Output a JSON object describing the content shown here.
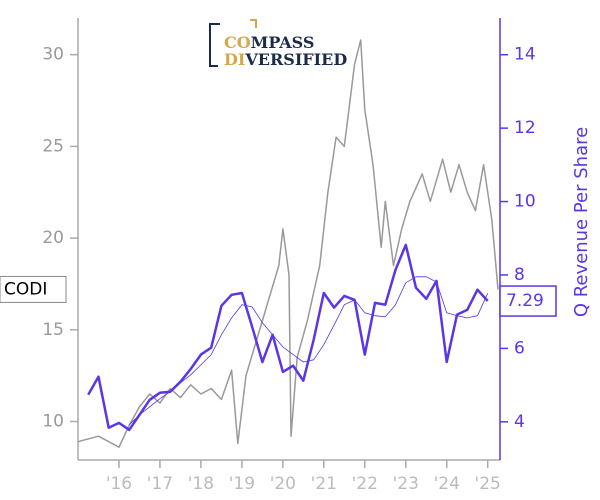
{
  "chart_data": {
    "type": "line",
    "logo": {
      "line1_accent": "CO",
      "line1": "MPASS",
      "line2_accent": "DI",
      "line2": "VERSIFIED"
    },
    "y2label": "Q Revenue Per Share",
    "xlim": [
      2015,
      2025.3
    ],
    "xticks": [
      {
        "value": 2016,
        "label": "'16"
      },
      {
        "value": 2017,
        "label": "'17"
      },
      {
        "value": 2018,
        "label": "'18"
      },
      {
        "value": 2019,
        "label": "'19"
      },
      {
        "value": 2020,
        "label": "'20"
      },
      {
        "value": 2021,
        "label": "'21"
      },
      {
        "value": 2022,
        "label": "'22"
      },
      {
        "value": 2023,
        "label": "'23"
      },
      {
        "value": 2024,
        "label": "'24"
      },
      {
        "value": 2025,
        "label": "'25"
      }
    ],
    "ylim": [
      7.9,
      32
    ],
    "yticks": [
      10,
      15,
      20,
      25,
      30
    ],
    "y2lim": [
      2.96,
      15
    ],
    "y2ticks": [
      4,
      6,
      8,
      10,
      12,
      14
    ],
    "series": [
      {
        "name": "CODI",
        "color": "#999999",
        "width": 1.5,
        "x": [
          2015.0,
          2015.5,
          2016.0,
          2016.25,
          2016.5,
          2016.75,
          2017.0,
          2017.25,
          2017.5,
          2017.75,
          2018.0,
          2018.25,
          2018.5,
          2018.75,
          2018.9,
          2019.1,
          2019.5,
          2019.9,
          2020.0,
          2020.15,
          2020.2,
          2020.35,
          2020.6,
          2020.9,
          2021.1,
          2021.3,
          2021.5,
          2021.75,
          2021.9,
          2022.0,
          2022.2,
          2022.4,
          2022.5,
          2022.7,
          2022.9,
          2023.1,
          2023.4,
          2023.6,
          2023.9,
          2024.1,
          2024.3,
          2024.5,
          2024.7,
          2024.9,
          2025.1,
          2025.25
        ],
        "values": [
          8.9,
          9.2,
          8.6,
          9.8,
          10.8,
          11.5,
          11.0,
          11.8,
          11.3,
          12.0,
          11.5,
          11.8,
          11.2,
          12.8,
          8.8,
          12.5,
          15.5,
          18.5,
          20.5,
          18.0,
          9.2,
          13.5,
          15.5,
          18.5,
          22.5,
          25.5,
          25.0,
          29.5,
          30.8,
          27.0,
          24.0,
          19.5,
          22.0,
          18.5,
          20.5,
          22.0,
          23.5,
          22.0,
          24.3,
          22.5,
          24.0,
          22.5,
          21.5,
          24.0,
          21.0,
          17.2
        ]
      },
      {
        "color": "#5b35e6",
        "width": 2.5,
        "axis": "y2",
        "x": [
          2015.25,
          2015.5,
          2015.75,
          2016.0,
          2016.25,
          2016.5,
          2016.75,
          2017.0,
          2017.25,
          2017.5,
          2017.75,
          2018.0,
          2018.25,
          2018.5,
          2018.75,
          2019.0,
          2019.25,
          2019.5,
          2019.75,
          2020.0,
          2020.25,
          2020.5,
          2020.75,
          2021.0,
          2021.25,
          2021.5,
          2021.75,
          2022.0,
          2022.25,
          2022.5,
          2022.75,
          2023.0,
          2023.25,
          2023.5,
          2023.75,
          2024.0,
          2024.25,
          2024.5,
          2024.75,
          2025.0
        ],
        "values": [
          4.74,
          5.23,
          3.84,
          3.97,
          3.78,
          4.19,
          4.6,
          4.79,
          4.82,
          5.09,
          5.44,
          5.83,
          6.02,
          7.16,
          7.46,
          7.51,
          6.59,
          5.63,
          6.37,
          5.36,
          5.53,
          5.12,
          6.23,
          7.51,
          7.11,
          7.43,
          7.32,
          5.83,
          7.24,
          7.19,
          8.14,
          8.82,
          7.65,
          7.35,
          7.84,
          5.63,
          6.92,
          7.05,
          7.6,
          7.29
        ]
      },
      {
        "color": "#5b35e6",
        "width": 0.8,
        "axis": "y2",
        "x": [
          2015.25,
          2015.5,
          2015.75,
          2016.0,
          2016.25,
          2016.5,
          2016.75,
          2017.0,
          2017.25,
          2017.5,
          2017.75,
          2018.0,
          2018.25,
          2018.5,
          2018.75,
          2019.0,
          2019.25,
          2019.5,
          2019.75,
          2020.0,
          2020.25,
          2020.5,
          2020.75,
          2021.0,
          2021.25,
          2021.5,
          2021.75,
          2022.0,
          2022.25,
          2022.5,
          2022.75,
          2023.0,
          2023.25,
          2023.5,
          2023.75,
          2024.0,
          2024.25,
          2024.5,
          2024.75,
          2025.0
        ],
        "values": [
          null,
          null,
          null,
          null,
          3.92,
          4.19,
          4.41,
          4.63,
          4.82,
          5.06,
          5.28,
          5.55,
          5.83,
          6.37,
          6.83,
          7.19,
          7.13,
          6.7,
          6.37,
          6.04,
          5.83,
          5.63,
          5.69,
          6.1,
          6.64,
          7.19,
          7.32,
          6.97,
          6.89,
          6.86,
          7.19,
          7.79,
          7.95,
          7.95,
          7.81,
          6.97,
          6.89,
          6.83,
          6.89,
          7.5
        ]
      }
    ]
  }
}
